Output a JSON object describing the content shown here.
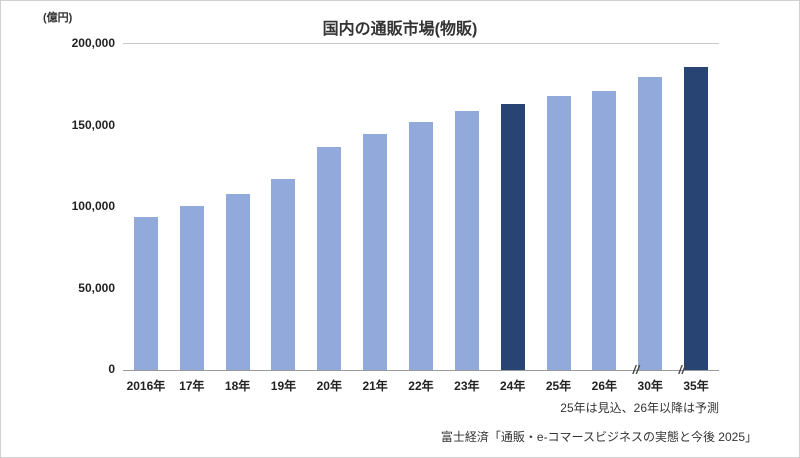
{
  "header": {
    "title": "国内の通販市場(物販)",
    "unit_label": "(億円)"
  },
  "chart_data": {
    "type": "bar",
    "title": "国内の通販市場(物販)",
    "ylabel": "(億円)",
    "xlabel": "",
    "categories": [
      "2016年",
      "17年",
      "18年",
      "19年",
      "20年",
      "21年",
      "22年",
      "23年",
      "24年",
      "25年",
      "26年",
      "30年",
      "35年"
    ],
    "values": [
      94000,
      100500,
      108000,
      117000,
      137000,
      145000,
      152000,
      159000,
      163000,
      168000,
      171000,
      180000,
      186000
    ],
    "ylim": [
      0,
      200000
    ],
    "yticks": [
      {
        "value": 0,
        "label": "0"
      },
      {
        "value": 50000,
        "label": "50,000"
      },
      {
        "value": 100000,
        "label": "100,000"
      },
      {
        "value": 150000,
        "label": "150,000"
      },
      {
        "value": 200000,
        "label": "200,000"
      }
    ],
    "grid": "top-line-only",
    "legend": "none",
    "bar_color": "#92A9DB",
    "highlight_color": "#274472",
    "highlight_indices": [
      8,
      12
    ],
    "axis_break_after_indices": [
      10,
      11
    ],
    "break_mark": "//"
  },
  "footnotes": {
    "note": "25年は見込、26年以降は予測",
    "source": "富士経済「通販・e-コマースビジネスの実態と今後 2025」"
  }
}
